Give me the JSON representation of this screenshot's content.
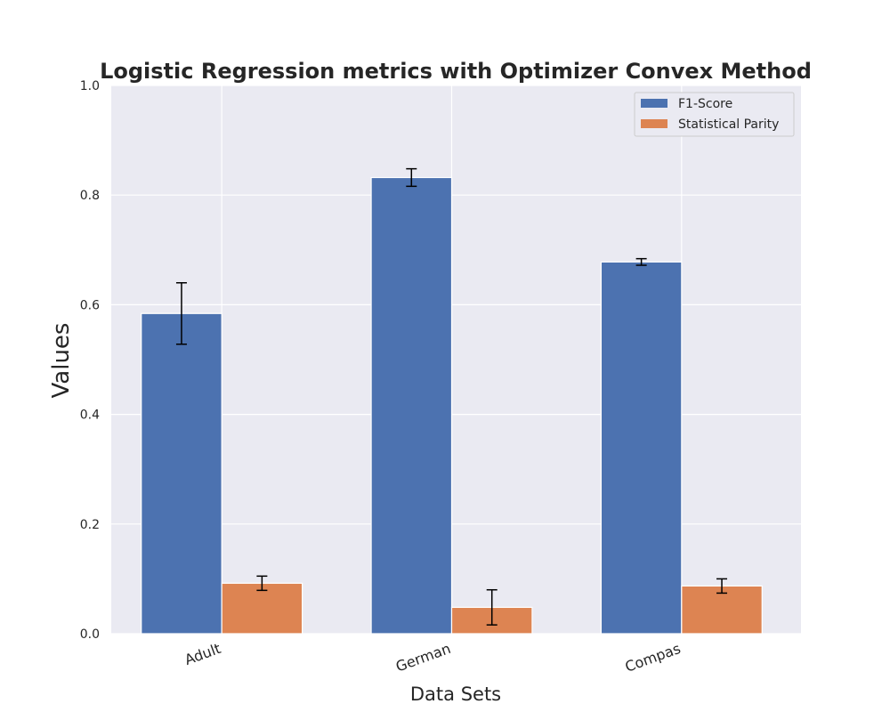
{
  "chart_data": {
    "type": "bar",
    "title": "Logistic Regression metrics with Optimizer Convex Method",
    "xlabel": "Data Sets",
    "ylabel": "Values",
    "categories": [
      "Adult",
      "German",
      "Compas"
    ],
    "series": [
      {
        "name": "F1-Score",
        "values": [
          0.584,
          0.832,
          0.678
        ],
        "errors": [
          0.056,
          0.016,
          0.006
        ],
        "color": "#4c72b0"
      },
      {
        "name": "Statistical Parity",
        "values": [
          0.092,
          0.048,
          0.087
        ],
        "errors": [
          0.013,
          0.032,
          0.013
        ],
        "color": "#dd8452"
      }
    ],
    "ylim": [
      0,
      1.0
    ],
    "yticks": [
      "0.0",
      "0.2",
      "0.4",
      "0.6",
      "0.8",
      "1.0"
    ],
    "ytick_values": [
      0,
      0.2,
      0.4,
      0.6,
      0.8,
      1.0
    ],
    "grid": true,
    "legend_position": "top-right",
    "colors": {
      "plot_background": "#eaeaf2",
      "grid": "#ffffff",
      "error_bar": "#000000"
    }
  }
}
